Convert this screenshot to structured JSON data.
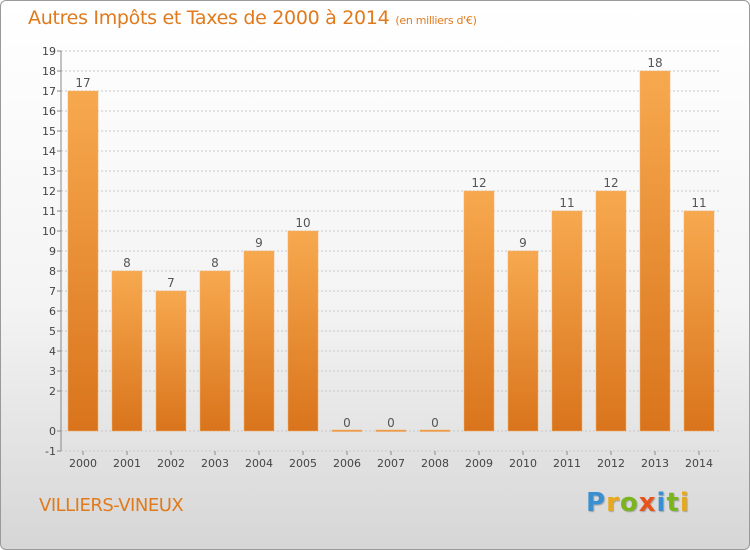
{
  "title": "Autres Impôts et Taxes de 2000 à 2014",
  "subtitle": "(en milliers d'€)",
  "commune": "VILLIERS-VINEUX",
  "brand": {
    "letters": [
      {
        "ch": "P",
        "color": "#3a8fd0"
      },
      {
        "ch": "r",
        "color": "#e8a81c"
      },
      {
        "ch": "o",
        "color": "#7ab51d"
      },
      {
        "ch": "x",
        "color": "#e8531c"
      },
      {
        "ch": "i",
        "color": "#3a8fd0"
      },
      {
        "ch": "t",
        "color": "#7ab51d"
      },
      {
        "ch": "i",
        "color": "#e8a81c"
      }
    ]
  },
  "colors": {
    "accent": "#e07a1c",
    "bar_light": "#f7a94f",
    "bar_dark": "#d9741c",
    "grid": "#c8c8c8",
    "axis_text": "#444444"
  },
  "chart_data": {
    "type": "bar",
    "categories": [
      "2000",
      "2001",
      "2002",
      "2003",
      "2004",
      "2005",
      "2006",
      "2007",
      "2008",
      "2009",
      "2010",
      "2011",
      "2012",
      "2013",
      "2014"
    ],
    "values": [
      17,
      8,
      7,
      8,
      9,
      10,
      0,
      0,
      0,
      12,
      9,
      11,
      12,
      18,
      11
    ],
    "ylim": [
      -1,
      19
    ],
    "yticks": [
      -1,
      0,
      2,
      3,
      4,
      5,
      6,
      7,
      8,
      9,
      10,
      11,
      12,
      13,
      14,
      15,
      16,
      17,
      18,
      19
    ],
    "grid": true
  }
}
